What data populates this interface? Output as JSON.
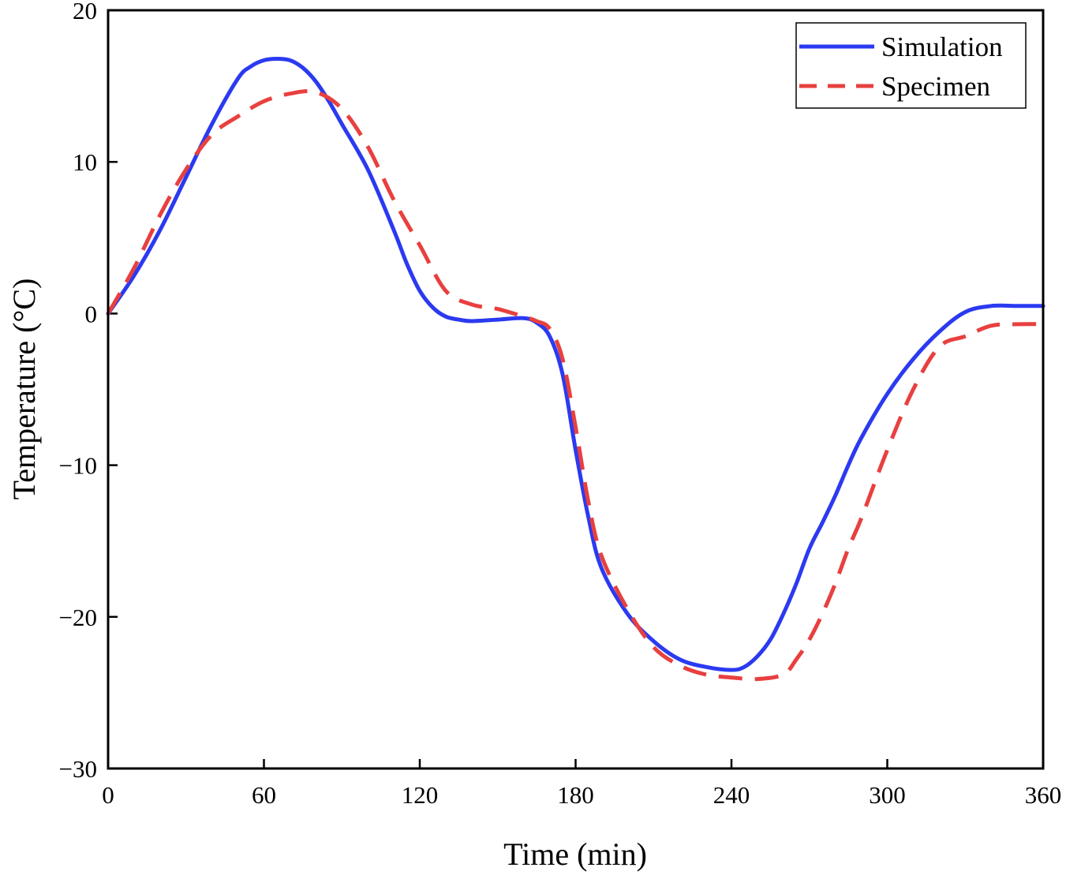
{
  "chart_data": {
    "type": "line",
    "xlabel": "Time (min)",
    "ylabel": "Temperature (°C)",
    "xlim": [
      0,
      360
    ],
    "ylim": [
      -30,
      20
    ],
    "xticks": [
      0,
      60,
      120,
      180,
      240,
      300,
      360
    ],
    "yticks": [
      -30,
      -20,
      -10,
      0,
      10,
      20
    ],
    "ytick_labels": [
      "−30",
      "−20",
      "−10",
      "0",
      "10",
      "20"
    ],
    "grid": false,
    "legend_position": "top-right",
    "series": [
      {
        "name": "Simulation",
        "color": "#2b3af0",
        "style": "solid",
        "x": [
          0,
          10,
          20,
          30,
          40,
          50,
          55,
          60,
          65,
          70,
          75,
          80,
          85,
          90,
          100,
          110,
          115,
          120,
          125,
          130,
          135,
          140,
          150,
          160,
          165,
          170,
          175,
          180,
          185,
          190,
          200,
          210,
          220,
          230,
          240,
          245,
          250,
          255,
          260,
          265,
          270,
          275,
          280,
          285,
          290,
          300,
          310,
          320,
          330,
          340,
          350,
          360
        ],
        "y": [
          0,
          2.5,
          5.5,
          9,
          12.5,
          15.5,
          16.3,
          16.7,
          16.8,
          16.7,
          16.2,
          15.3,
          14,
          12.5,
          9.5,
          5.5,
          3.3,
          1.5,
          0.4,
          -0.2,
          -0.4,
          -0.5,
          -0.4,
          -0.3,
          -0.6,
          -1.5,
          -4,
          -9,
          -13.5,
          -16.8,
          -19.8,
          -21.6,
          -22.8,
          -23.3,
          -23.5,
          -23.3,
          -22.6,
          -21.5,
          -19.8,
          -17.8,
          -15.5,
          -13.8,
          -12,
          -10,
          -8.2,
          -5.3,
          -3,
          -1.2,
          0.1,
          0.5,
          0.5,
          0.5
        ]
      },
      {
        "name": "Specimen",
        "color": "#e8403f",
        "style": "dashed",
        "x": [
          0,
          10,
          20,
          30,
          40,
          50,
          60,
          70,
          80,
          90,
          100,
          110,
          120,
          130,
          140,
          150,
          160,
          165,
          170,
          175,
          180,
          185,
          190,
          200,
          210,
          220,
          230,
          240,
          250,
          260,
          265,
          270,
          275,
          280,
          285,
          290,
          300,
          310,
          320,
          330,
          340,
          350,
          360
        ],
        "y": [
          0,
          3,
          6.5,
          9.5,
          11.8,
          13,
          14,
          14.5,
          14.6,
          13.5,
          11,
          7.5,
          4.5,
          1.5,
          0.6,
          0.3,
          -0.2,
          -0.5,
          -1,
          -3,
          -7.5,
          -12.5,
          -16,
          -19.5,
          -22,
          -23.2,
          -23.8,
          -24,
          -24.1,
          -23.8,
          -22.8,
          -21.5,
          -19.8,
          -17.8,
          -15.5,
          -13.5,
          -9,
          -5,
          -2.2,
          -1.5,
          -0.8,
          -0.7,
          -0.7
        ]
      }
    ]
  }
}
